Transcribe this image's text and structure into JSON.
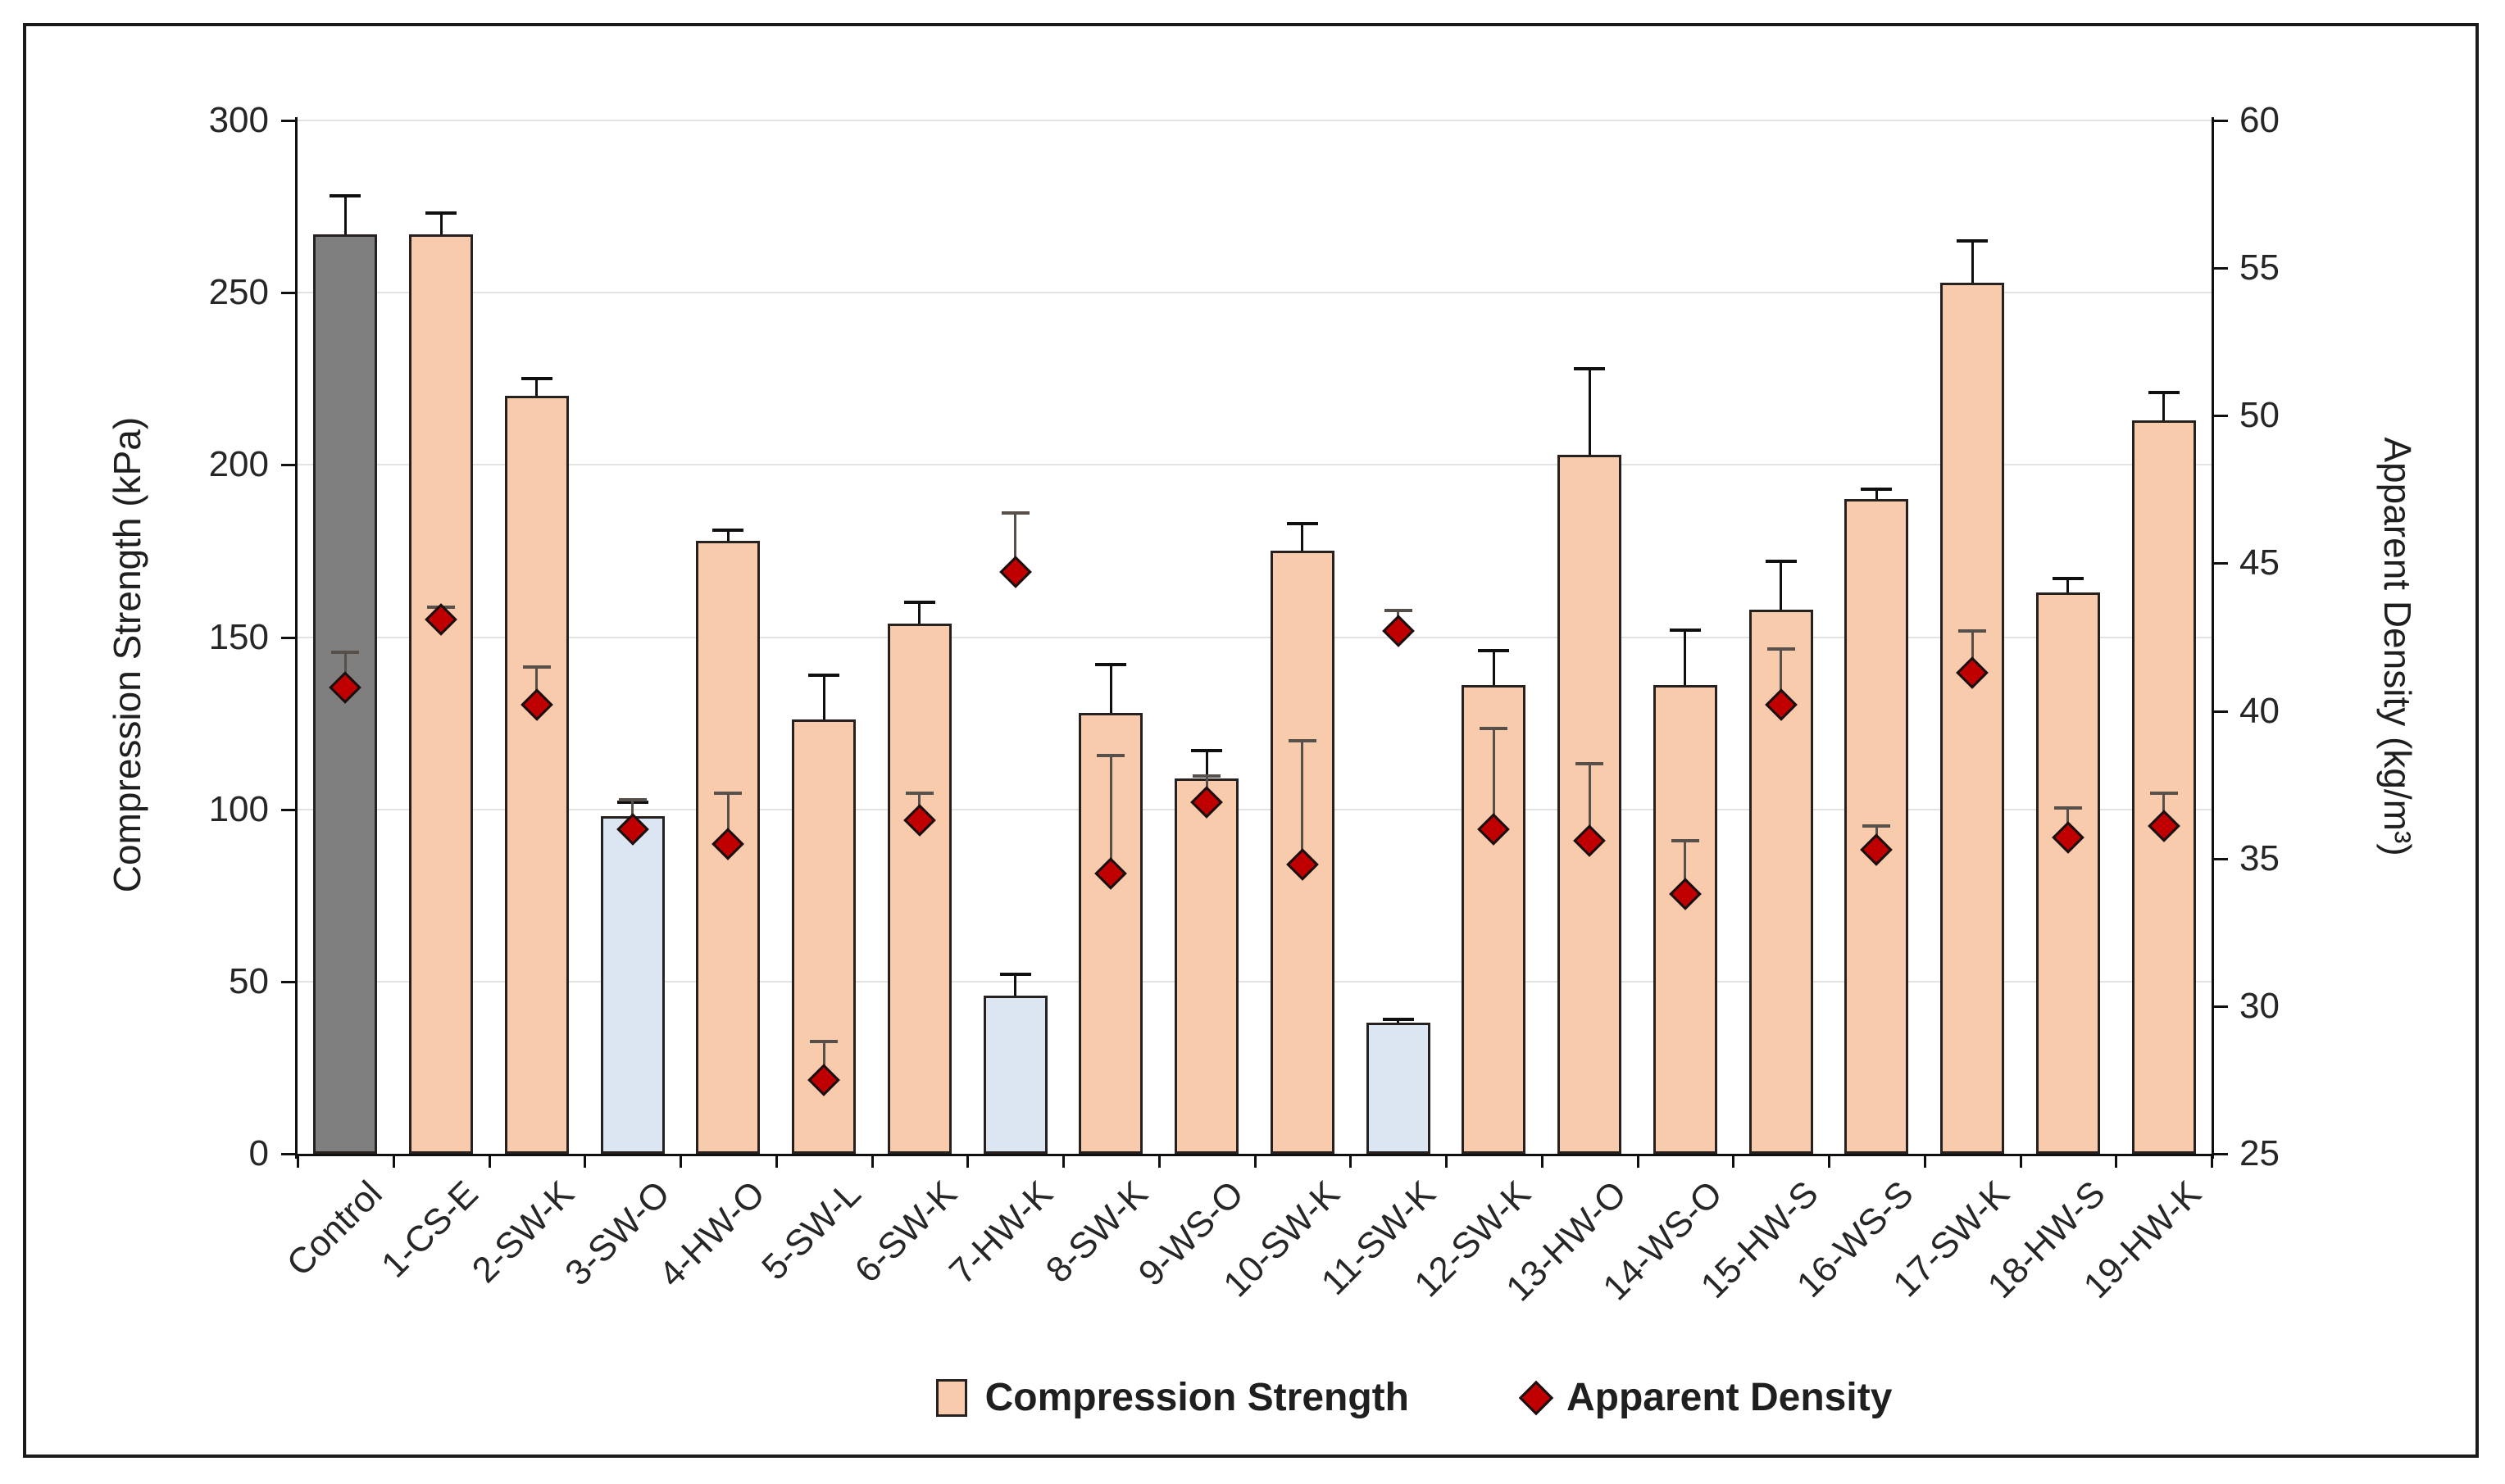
{
  "chart_data": {
    "type": "bar",
    "title": "",
    "categories": [
      "Control",
      "1-CS-E",
      "2-SW-K",
      "3-SW-O",
      "4-HW-O",
      "5-SW-L",
      "6-SW-K",
      "7-HW-K",
      "8-SW-K",
      "9-WS-O",
      "10-SW-K",
      "11-SW-K",
      "12-SW-K",
      "13-HW-O",
      "14-WS-O",
      "15-HW-S",
      "16-WS-S",
      "17-SW-K",
      "18-HW-S",
      "19-HW-K"
    ],
    "series": [
      {
        "name": "Compression Strength",
        "type": "bar",
        "axis": "left",
        "values": [
          267,
          267,
          220,
          98,
          178,
          126,
          154,
          46,
          128,
          109,
          175,
          38,
          136,
          203,
          136,
          158,
          190,
          253,
          163,
          213
        ],
        "errors_up": [
          11,
          6,
          5,
          4,
          3,
          13,
          6,
          6,
          14,
          8,
          8,
          1,
          10,
          25,
          16,
          14,
          3,
          12,
          4,
          8
        ],
        "fill_default": "#F8CBAD",
        "fill_overrides": {
          "0": "#7F7F7F",
          "3": "#DCE6F2",
          "7": "#DCE6F2",
          "11": "#DCE6F2"
        }
      },
      {
        "name": "Apparent Density",
        "type": "scatter-diamond",
        "axis": "right",
        "values": [
          40.8,
          43.1,
          40.2,
          36.0,
          35.5,
          27.5,
          36.3,
          44.7,
          34.5,
          36.9,
          34.8,
          42.7,
          36.0,
          35.6,
          33.8,
          40.2,
          35.3,
          41.3,
          35.7,
          36.1
        ],
        "errors_up": [
          1.2,
          0.4,
          1.3,
          1.0,
          1.7,
          1.3,
          0.9,
          2.0,
          4.0,
          0.9,
          4.2,
          0.7,
          3.4,
          2.6,
          1.8,
          1.9,
          0.8,
          1.4,
          1.0,
          1.1
        ],
        "marker_color": "#C00000"
      }
    ],
    "axes": {
      "left": {
        "label": "Compression Strength (kPa)",
        "min": 0,
        "max": 300,
        "tick_step": 50,
        "tick_labels": [
          "300",
          "250",
          "200",
          "150",
          "100",
          "50",
          "0"
        ]
      },
      "right": {
        "label": "Apparent Density (kg/m³)",
        "min": 25,
        "max": 60,
        "tick_step": 5,
        "tick_labels": [
          "60",
          "55",
          "50",
          "45",
          "40",
          "35",
          "30",
          "25"
        ]
      }
    },
    "legend": [
      {
        "label": "Compression Strength",
        "marker": "bar-swatch"
      },
      {
        "label": "Apparent Density",
        "marker": "diamond"
      }
    ],
    "grid": true,
    "colors": {
      "bar_border": "#26201E",
      "marker_red": "#C00000",
      "marker_border": "#161010",
      "error_bar": "#0F0F0F",
      "error_density": "#57504A",
      "grid": "#E3E3E3",
      "axis": "#0F0F0F",
      "text": "#262626"
    }
  }
}
